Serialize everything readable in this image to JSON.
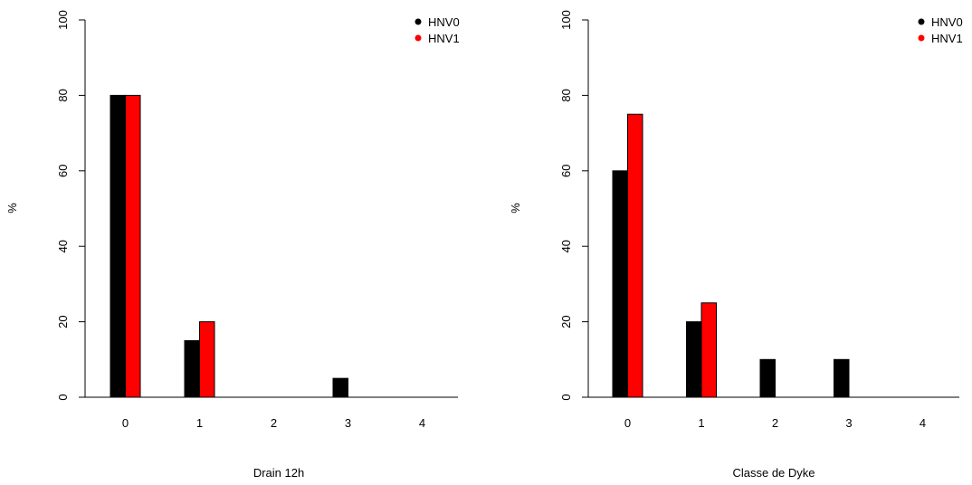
{
  "colors": {
    "HNV0": "#000000",
    "HNV1": "#ff0000",
    "axis": "#000000",
    "background": "#ffffff"
  },
  "chart_data": [
    {
      "type": "bar",
      "categories": [
        "0",
        "1",
        "2",
        "3",
        "4"
      ],
      "series": [
        {
          "name": "HNV0",
          "values": [
            80,
            15,
            0,
            5,
            0
          ]
        },
        {
          "name": "HNV1",
          "values": [
            80,
            20,
            0,
            0,
            0
          ]
        }
      ],
      "title": "",
      "xlabel": "Drain 12h",
      "ylabel": "%",
      "ylim": [
        0,
        100
      ],
      "yticks": [
        "0",
        "20",
        "40",
        "60",
        "80",
        "100"
      ],
      "legend": {
        "position": "top-right",
        "entries": [
          "HNV0",
          "HNV1"
        ]
      },
      "grid": false
    },
    {
      "type": "bar",
      "categories": [
        "0",
        "1",
        "2",
        "3",
        "4"
      ],
      "series": [
        {
          "name": "HNV0",
          "values": [
            60,
            20,
            10,
            10,
            0
          ]
        },
        {
          "name": "HNV1",
          "values": [
            75,
            25,
            0,
            0,
            0
          ]
        }
      ],
      "title": "",
      "xlabel": "Classe de Dyke",
      "ylabel": "%",
      "ylim": [
        0,
        100
      ],
      "yticks": [
        "0",
        "20",
        "40",
        "60",
        "80",
        "100"
      ],
      "legend": {
        "position": "top-right",
        "entries": [
          "HNV0",
          "HNV1"
        ]
      },
      "grid": false
    }
  ]
}
